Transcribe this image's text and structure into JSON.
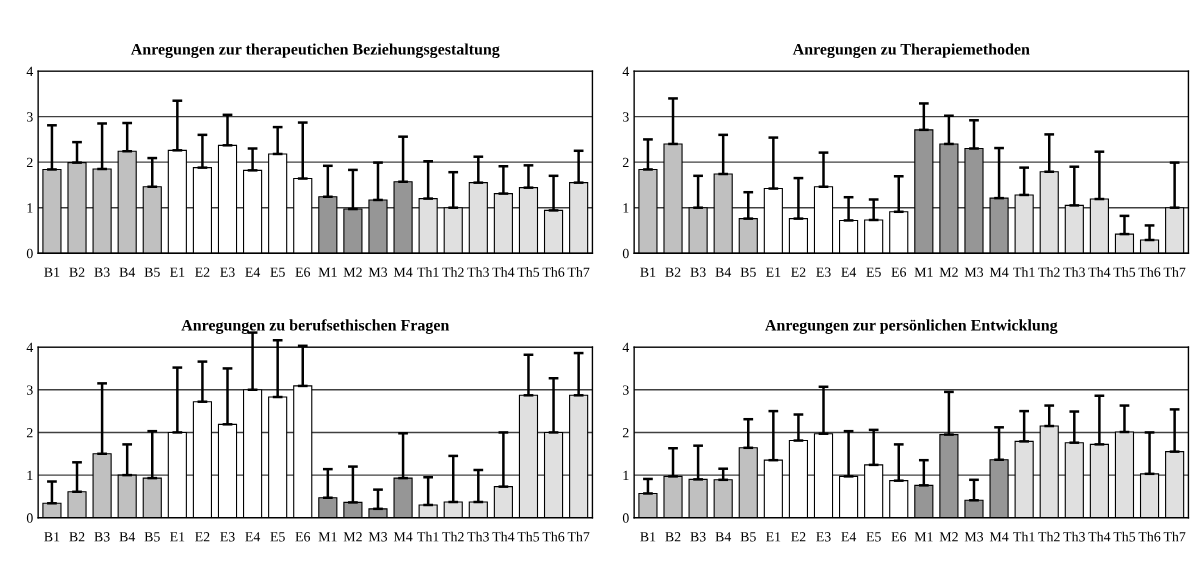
{
  "chart_data": [
    {
      "type": "bar",
      "title": "Anregungen zur therapeutichen Beziehungsgestaltung",
      "categories": [
        "B1",
        "B2",
        "B3",
        "B4",
        "B5",
        "E1",
        "E2",
        "E3",
        "E4",
        "E5",
        "E6",
        "M1",
        "M2",
        "M3",
        "M4",
        "Th1",
        "Th2",
        "Th3",
        "Th4",
        "Th5",
        "Th6",
        "Th7"
      ],
      "values": [
        1.84,
        1.99,
        1.85,
        2.24,
        1.46,
        2.26,
        1.88,
        2.37,
        1.82,
        2.18,
        1.64,
        1.24,
        0.97,
        1.17,
        1.57,
        1.2,
        1.0,
        1.55,
        1.31,
        1.44,
        0.94,
        1.55
      ],
      "errors": [
        [
          1.84,
          2.81
        ],
        [
          1.99,
          2.44
        ],
        [
          1.85,
          2.85
        ],
        [
          2.24,
          2.86
        ],
        [
          1.46,
          2.09
        ],
        [
          2.26,
          3.35
        ],
        [
          1.88,
          2.6
        ],
        [
          2.37,
          3.04
        ],
        [
          1.82,
          2.3
        ],
        [
          2.18,
          2.77
        ],
        [
          1.64,
          2.87
        ],
        [
          1.24,
          1.92
        ],
        [
          0.97,
          1.83
        ],
        [
          1.17,
          1.99
        ],
        [
          1.57,
          2.56
        ],
        [
          1.2,
          2.02
        ],
        [
          1.0,
          1.78
        ],
        [
          1.55,
          2.12
        ],
        [
          1.31,
          1.91
        ],
        [
          1.44,
          1.93
        ],
        [
          0.94,
          1.7
        ],
        [
          1.55,
          2.25
        ]
      ],
      "colors": [
        "#c0c0c0",
        "#c0c0c0",
        "#c0c0c0",
        "#c0c0c0",
        "#c0c0c0",
        "#ffffff",
        "#ffffff",
        "#ffffff",
        "#ffffff",
        "#ffffff",
        "#ffffff",
        "#969696",
        "#969696",
        "#969696",
        "#969696",
        "#e0e0e0",
        "#e0e0e0",
        "#e0e0e0",
        "#e0e0e0",
        "#e0e0e0",
        "#e0e0e0",
        "#e0e0e0"
      ],
      "ylim": [
        0,
        4
      ],
      "yticks": [
        0,
        1,
        2,
        3,
        4
      ],
      "grid": "y"
    },
    {
      "type": "bar",
      "title": "Anregungen zu Therapiemethoden",
      "categories": [
        "B1",
        "B2",
        "B3",
        "B4",
        "B5",
        "E1",
        "E2",
        "E3",
        "E4",
        "E5",
        "E6",
        "M1",
        "M2",
        "M3",
        "M4",
        "Th1",
        "Th2",
        "Th3",
        "Th4",
        "Th5",
        "Th6",
        "Th7"
      ],
      "values": [
        1.84,
        2.4,
        1.0,
        1.74,
        0.76,
        1.42,
        0.76,
        1.46,
        0.72,
        0.73,
        0.91,
        2.71,
        2.4,
        2.3,
        1.21,
        1.28,
        1.79,
        1.05,
        1.19,
        0.42,
        0.29,
        1.0
      ],
      "errors": [
        [
          1.84,
          2.5
        ],
        [
          2.4,
          3.4
        ],
        [
          1.0,
          1.7
        ],
        [
          1.74,
          2.6
        ],
        [
          0.76,
          1.34
        ],
        [
          1.42,
          2.54
        ],
        [
          0.76,
          1.65
        ],
        [
          1.46,
          2.21
        ],
        [
          0.72,
          1.23
        ],
        [
          0.73,
          1.18
        ],
        [
          0.91,
          1.69
        ],
        [
          2.71,
          3.29
        ],
        [
          2.4,
          3.02
        ],
        [
          2.3,
          2.92
        ],
        [
          1.21,
          2.31
        ],
        [
          1.28,
          1.88
        ],
        [
          1.79,
          2.61
        ],
        [
          1.05,
          1.9
        ],
        [
          1.19,
          2.23
        ],
        [
          0.42,
          0.82
        ],
        [
          0.29,
          0.61
        ],
        [
          1.0,
          1.99
        ]
      ],
      "colors": [
        "#c0c0c0",
        "#c0c0c0",
        "#c0c0c0",
        "#c0c0c0",
        "#c0c0c0",
        "#ffffff",
        "#ffffff",
        "#ffffff",
        "#ffffff",
        "#ffffff",
        "#ffffff",
        "#969696",
        "#969696",
        "#969696",
        "#969696",
        "#e0e0e0",
        "#e0e0e0",
        "#e0e0e0",
        "#e0e0e0",
        "#e0e0e0",
        "#e0e0e0",
        "#e0e0e0"
      ],
      "ylim": [
        0,
        4
      ],
      "yticks": [
        0,
        1,
        2,
        3,
        4
      ],
      "grid": "y"
    },
    {
      "type": "bar",
      "title": "Anregungen zu berufsethischen Fragen",
      "categories": [
        "B1",
        "B2",
        "B3",
        "B4",
        "B5",
        "E1",
        "E2",
        "E3",
        "E4",
        "E5",
        "E6",
        "M1",
        "M2",
        "M3",
        "M4",
        "Th1",
        "Th2",
        "Th3",
        "Th4",
        "Th5",
        "Th6",
        "Th7"
      ],
      "values": [
        0.34,
        0.61,
        1.5,
        1.0,
        0.93,
        2.0,
        2.72,
        2.19,
        3.0,
        2.83,
        3.09,
        0.47,
        0.36,
        0.21,
        0.93,
        0.3,
        0.37,
        0.37,
        0.73,
        2.87,
        2.0,
        2.87
      ],
      "errors": [
        [
          0.34,
          0.85
        ],
        [
          0.61,
          1.3
        ],
        [
          1.5,
          3.15
        ],
        [
          1.0,
          1.72
        ],
        [
          0.93,
          2.03
        ],
        [
          2.0,
          3.52
        ],
        [
          2.72,
          3.66
        ],
        [
          2.19,
          3.5
        ],
        [
          3.0,
          4.34
        ],
        [
          2.83,
          4.16
        ],
        [
          3.09,
          4.03
        ],
        [
          0.47,
          1.14
        ],
        [
          0.36,
          1.2
        ],
        [
          0.21,
          0.66
        ],
        [
          0.93,
          1.98
        ],
        [
          0.3,
          0.95
        ],
        [
          0.37,
          1.45
        ],
        [
          0.37,
          1.12
        ],
        [
          0.73,
          2.0
        ],
        [
          2.87,
          3.82
        ],
        [
          2.0,
          3.27
        ],
        [
          2.87,
          3.86
        ]
      ],
      "colors": [
        "#c0c0c0",
        "#c0c0c0",
        "#c0c0c0",
        "#c0c0c0",
        "#c0c0c0",
        "#ffffff",
        "#ffffff",
        "#ffffff",
        "#ffffff",
        "#ffffff",
        "#ffffff",
        "#969696",
        "#969696",
        "#969696",
        "#969696",
        "#e0e0e0",
        "#e0e0e0",
        "#e0e0e0",
        "#e0e0e0",
        "#e0e0e0",
        "#e0e0e0",
        "#e0e0e0"
      ],
      "ylim": [
        0,
        4
      ],
      "yticks": [
        0,
        1,
        2,
        3,
        4
      ],
      "grid": "y"
    },
    {
      "type": "bar",
      "title": "Anregungen zur persönlichen Entwicklung",
      "categories": [
        "B1",
        "B2",
        "B3",
        "B4",
        "B5",
        "E1",
        "E2",
        "E3",
        "E4",
        "E5",
        "E6",
        "M1",
        "M2",
        "M3",
        "M4",
        "Th1",
        "Th2",
        "Th3",
        "Th4",
        "Th5",
        "Th6",
        "Th7"
      ],
      "values": [
        0.57,
        0.97,
        0.9,
        0.89,
        1.64,
        1.35,
        1.81,
        1.97,
        0.97,
        1.24,
        0.87,
        0.76,
        1.95,
        0.41,
        1.36,
        1.79,
        2.15,
        1.76,
        1.72,
        2.01,
        1.03,
        1.55
      ],
      "errors": [
        [
          0.57,
          0.91
        ],
        [
          0.97,
          1.63
        ],
        [
          0.9,
          1.69
        ],
        [
          0.89,
          1.15
        ],
        [
          1.64,
          2.31
        ],
        [
          1.35,
          2.5
        ],
        [
          1.81,
          2.42
        ],
        [
          1.97,
          3.07
        ],
        [
          0.97,
          2.03
        ],
        [
          1.24,
          2.06
        ],
        [
          0.87,
          1.72
        ],
        [
          0.76,
          1.35
        ],
        [
          1.95,
          2.95
        ],
        [
          0.41,
          0.89
        ],
        [
          1.36,
          2.12
        ],
        [
          1.79,
          2.5
        ],
        [
          2.15,
          2.63
        ],
        [
          1.76,
          2.49
        ],
        [
          1.72,
          2.86
        ],
        [
          2.01,
          2.63
        ],
        [
          1.03,
          2.0
        ],
        [
          1.55,
          2.54
        ]
      ],
      "colors": [
        "#c0c0c0",
        "#c0c0c0",
        "#c0c0c0",
        "#c0c0c0",
        "#c0c0c0",
        "#ffffff",
        "#ffffff",
        "#ffffff",
        "#ffffff",
        "#ffffff",
        "#ffffff",
        "#969696",
        "#969696",
        "#969696",
        "#969696",
        "#e0e0e0",
        "#e0e0e0",
        "#e0e0e0",
        "#e0e0e0",
        "#e0e0e0",
        "#e0e0e0",
        "#e0e0e0"
      ],
      "ylim": [
        0,
        4
      ],
      "yticks": [
        0,
        1,
        2,
        3,
        4
      ],
      "grid": "y"
    }
  ]
}
